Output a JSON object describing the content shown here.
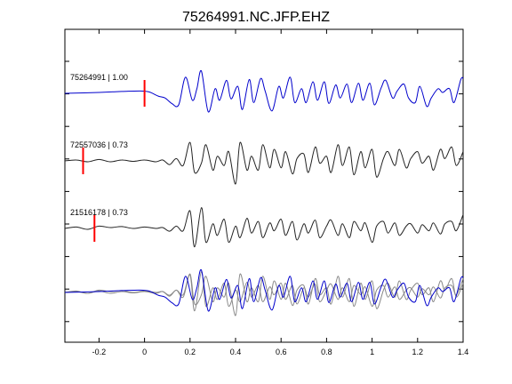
{
  "chart_data": {
    "type": "line",
    "title": "75264991.NC.JFP.EHZ",
    "xlabel": "",
    "ylabel": "",
    "xlim": [
      -0.35,
      1.4
    ],
    "xticks": [
      -0.2,
      0,
      0.2,
      0.4,
      0.6,
      0.8,
      1,
      1.2,
      1.4
    ],
    "xtick_labels": [
      "-0.2",
      "0",
      "0.2",
      "0.4",
      "0.6",
      "0.8",
      "1",
      "1.2",
      "1.4"
    ],
    "grid": false,
    "colors": {
      "primary": "#0000cc",
      "secondary": "#222222",
      "overlay_secondary": "#888888",
      "pick": "#ff0000"
    },
    "traces": [
      {
        "label": "75264991 | 1.00",
        "color": "#0000cc",
        "pick_x": 0.0,
        "x": [
          -0.35,
          -0.2,
          -0.1,
          -0.02,
          0.02,
          0.06,
          0.09,
          0.12,
          0.15,
          0.18,
          0.21,
          0.23,
          0.25,
          0.28,
          0.31,
          0.33,
          0.36,
          0.38,
          0.41,
          0.43,
          0.46,
          0.48,
          0.51,
          0.53,
          0.56,
          0.59,
          0.61,
          0.64,
          0.66,
          0.69,
          0.71,
          0.74,
          0.76,
          0.79,
          0.81,
          0.84,
          0.86,
          0.89,
          0.91,
          0.94,
          0.96,
          0.99,
          1.01,
          1.04,
          1.06,
          1.09,
          1.11,
          1.14,
          1.16,
          1.19,
          1.21,
          1.24,
          1.26,
          1.29,
          1.31,
          1.34,
          1.36,
          1.39,
          1.4
        ],
        "y": [
          0.0,
          0.02,
          0.04,
          0.05,
          0.03,
          -0.06,
          -0.1,
          -0.22,
          -0.25,
          0.35,
          -0.15,
          0.1,
          0.48,
          -0.4,
          0.1,
          -0.15,
          0.28,
          -0.12,
          0.15,
          -0.35,
          0.3,
          -0.2,
          0.32,
          0.05,
          -0.38,
          0.15,
          -0.1,
          0.35,
          -0.2,
          0.1,
          -0.2,
          0.25,
          -0.15,
          0.25,
          -0.22,
          0.18,
          -0.1,
          0.2,
          -0.2,
          0.22,
          -0.15,
          0.22,
          -0.25,
          0.12,
          0.28,
          -0.1,
          0.05,
          0.2,
          -0.1,
          -0.2,
          0.15,
          -0.28,
          -0.1,
          0.1,
          0.02,
          0.1,
          -0.2,
          0.3,
          0.32
        ]
      },
      {
        "label": "72557036 | 0.73",
        "color": "#222222",
        "pick_x": -0.27,
        "x": [
          -0.35,
          -0.3,
          -0.25,
          -0.2,
          -0.15,
          -0.1,
          -0.05,
          0.0,
          0.05,
          0.08,
          0.11,
          0.14,
          0.17,
          0.2,
          0.22,
          0.25,
          0.27,
          0.3,
          0.32,
          0.35,
          0.37,
          0.4,
          0.42,
          0.45,
          0.47,
          0.5,
          0.52,
          0.55,
          0.57,
          0.6,
          0.62,
          0.65,
          0.67,
          0.7,
          0.72,
          0.75,
          0.77,
          0.8,
          0.82,
          0.85,
          0.87,
          0.9,
          0.92,
          0.95,
          0.97,
          1.0,
          1.02,
          1.05,
          1.07,
          1.1,
          1.12,
          1.15,
          1.17,
          1.2,
          1.22,
          1.25,
          1.27,
          1.3,
          1.32,
          1.35,
          1.37,
          1.4
        ],
        "y": [
          0.0,
          0.02,
          -0.02,
          0.03,
          -0.02,
          0.02,
          -0.01,
          0.02,
          -0.02,
          0.02,
          -0.08,
          0.05,
          -0.1,
          0.4,
          -0.25,
          -0.05,
          0.35,
          -0.2,
          0.1,
          -0.1,
          0.2,
          -0.5,
          0.4,
          -0.2,
          0.1,
          -0.2,
          0.35,
          -0.15,
          0.25,
          -0.15,
          0.2,
          -0.28,
          0.05,
          0.15,
          -0.25,
          0.3,
          -0.05,
          0.1,
          -0.25,
          0.35,
          -0.1,
          0.3,
          -0.3,
          0.2,
          -0.15,
          0.25,
          -0.35,
          0.05,
          0.2,
          -0.1,
          0.25,
          -0.15,
          0.05,
          0.2,
          -0.05,
          0.1,
          -0.2,
          0.25,
          0.05,
          0.3,
          -0.1,
          0.2
        ]
      },
      {
        "label": "21516178 | 0.73",
        "color": "#222222",
        "pick_x": -0.22,
        "x": [
          -0.35,
          -0.3,
          -0.25,
          -0.2,
          -0.15,
          -0.1,
          -0.05,
          0.0,
          0.05,
          0.08,
          0.11,
          0.14,
          0.17,
          0.2,
          0.22,
          0.25,
          0.27,
          0.3,
          0.32,
          0.35,
          0.37,
          0.4,
          0.42,
          0.45,
          0.47,
          0.5,
          0.52,
          0.55,
          0.57,
          0.6,
          0.62,
          0.65,
          0.67,
          0.7,
          0.72,
          0.75,
          0.77,
          0.8,
          0.82,
          0.85,
          0.87,
          0.9,
          0.92,
          0.95,
          0.97,
          1.0,
          1.02,
          1.05,
          1.07,
          1.1,
          1.12,
          1.15,
          1.17,
          1.2,
          1.22,
          1.25,
          1.27,
          1.3,
          1.32,
          1.35,
          1.37,
          1.4
        ],
        "y": [
          0.0,
          0.03,
          -0.02,
          0.05,
          0.02,
          0.04,
          0.0,
          0.03,
          0.0,
          0.02,
          -0.06,
          0.05,
          -0.05,
          0.38,
          -0.4,
          0.45,
          -0.3,
          0.1,
          -0.15,
          0.2,
          -0.3,
          0.05,
          -0.2,
          0.22,
          -0.1,
          0.15,
          -0.2,
          0.12,
          -0.05,
          0.2,
          -0.15,
          0.15,
          -0.25,
          0.1,
          -0.1,
          0.18,
          -0.2,
          0.05,
          0.18,
          -0.15,
          0.1,
          -0.2,
          0.15,
          -0.05,
          0.12,
          -0.3,
          0.05,
          0.15,
          -0.1,
          0.12,
          -0.15,
          0.05,
          0.1,
          -0.1,
          0.08,
          -0.05,
          0.12,
          -0.12,
          0.1,
          0.15,
          -0.05,
          0.3
        ]
      }
    ]
  }
}
